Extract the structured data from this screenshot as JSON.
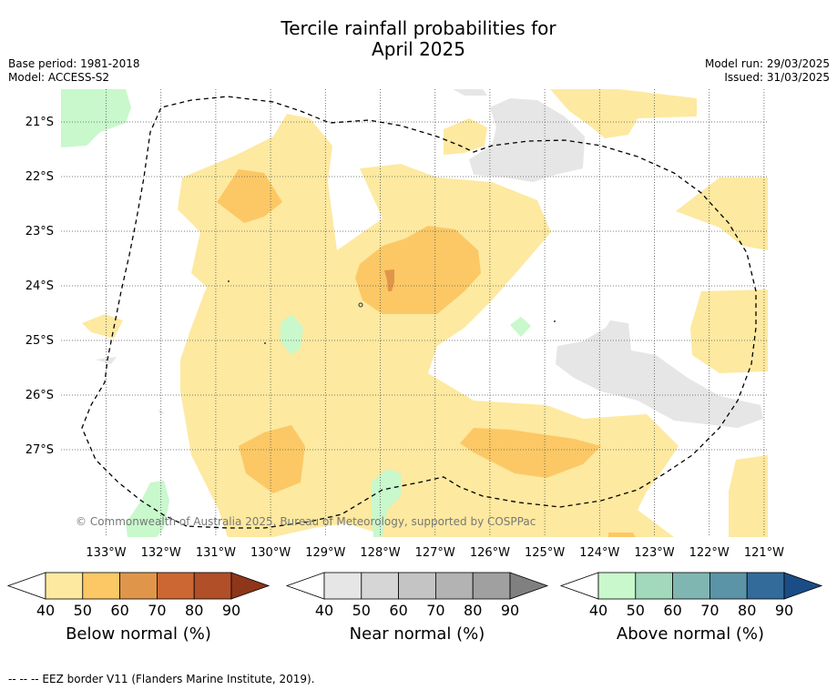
{
  "title_line1": "Tercile rainfall probabilities for",
  "title_line2": "April 2025",
  "base_period": "Base period: 1981-2018",
  "model": "Model: ACCESS-S2",
  "model_run": "Model run: 29/03/2025",
  "issued": "Issued: 31/03/2025",
  "copyright": "© Commonwealth of Australia 2025, Bureau of Meteorology, supported by COSPPac",
  "footnote": "--  --  -- EEZ border V11 (Flanders Marine Institute, 2019).",
  "lat_labels": [
    "21°S",
    "22°S",
    "23°S",
    "24°S",
    "25°S",
    "26°S",
    "27°S"
  ],
  "lon_labels": [
    "133°W",
    "132°W",
    "131°W",
    "130°W",
    "129°W",
    "128°W",
    "127°W",
    "126°W",
    "125°W",
    "124°W",
    "123°W",
    "122°W",
    "121°W"
  ],
  "colorbars": [
    {
      "label": "Below normal (%)",
      "ticks": [
        "40",
        "50",
        "60",
        "70",
        "80",
        "90"
      ],
      "colors": [
        "#fde9a0",
        "#fcc865",
        "#e0964a",
        "#cc6733",
        "#b14f28",
        "#8e3619"
      ]
    },
    {
      "label": "Near normal (%)",
      "ticks": [
        "40",
        "50",
        "60",
        "70",
        "80",
        "90"
      ],
      "colors": [
        "#e6e6e6",
        "#d6d6d6",
        "#c4c4c4",
        "#b3b3b3",
        "#a0a0a0",
        "#808080"
      ]
    },
    {
      "label": "Above normal (%)",
      "ticks": [
        "40",
        "50",
        "60",
        "70",
        "80",
        "90"
      ],
      "colors": [
        "#c8f8cc",
        "#a2d8bc",
        "#80b6b2",
        "#5a94a6",
        "#336b9a",
        "#1a4d86"
      ]
    }
  ]
}
